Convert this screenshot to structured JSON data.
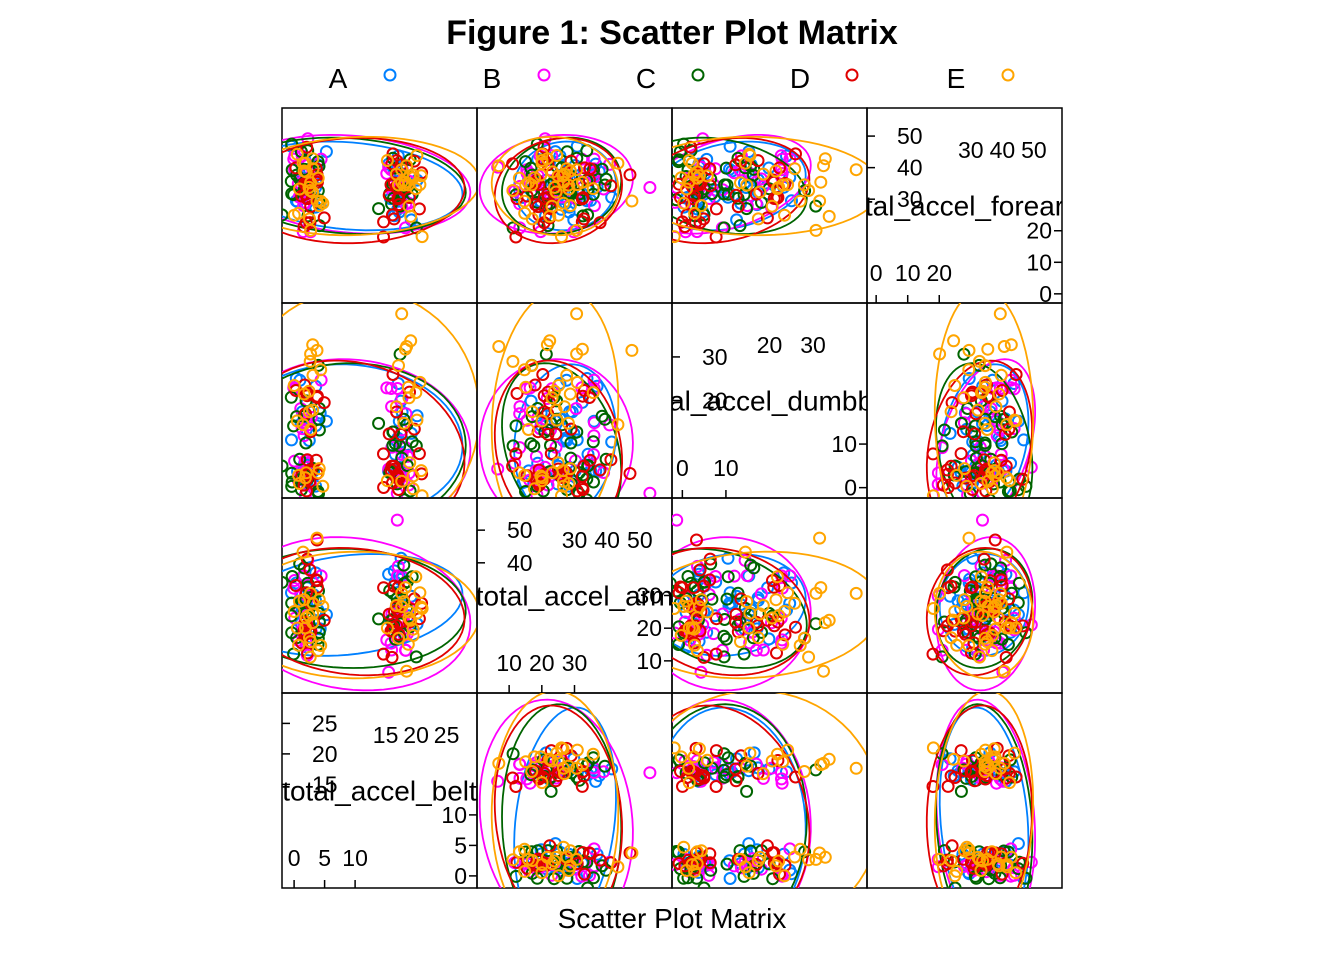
{
  "chart_data": {
    "type": "scatter",
    "title": "Figure 1: Scatter Plot Matrix",
    "xlabel": "Scatter Plot Matrix",
    "legend_position": "top",
    "grid": false,
    "ellipses": true,
    "groups": [
      {
        "name": "A",
        "color": "#0080FF"
      },
      {
        "name": "B",
        "color": "#FF00FF"
      },
      {
        "name": "C",
        "color": "#006400"
      },
      {
        "name": "D",
        "color": "#E00000"
      },
      {
        "name": "E",
        "color": "#FFA500"
      }
    ],
    "variables": [
      {
        "name": "total_accel_belt",
        "range": [
          -1,
          29
        ],
        "ticks_low": [
          0,
          5,
          10
        ],
        "ticks_high": [
          15,
          20,
          25
        ],
        "left_ticks": [
          0,
          5,
          10,
          15,
          20,
          25
        ]
      },
      {
        "name": "total_accel_arm",
        "range": [
          2,
          58
        ],
        "ticks_low": [
          10,
          20,
          30
        ],
        "ticks_high": [
          30,
          40,
          50
        ],
        "left_ticks": [
          10,
          20,
          30,
          40,
          50
        ]
      },
      {
        "name": "total_accel_dumbbell",
        "range": [
          -1,
          41
        ],
        "ticks_low": [
          0,
          10
        ],
        "ticks_high": [
          20,
          30
        ],
        "left_ticks": [
          0,
          10,
          20,
          30
        ]
      },
      {
        "name": "total_accel_forearm",
        "range": [
          -1,
          57
        ],
        "ticks_low": [
          0,
          10,
          20
        ],
        "ticks_high": [
          30,
          40,
          50
        ],
        "left_ticks": [
          0,
          10,
          20,
          30,
          40,
          50
        ]
      }
    ],
    "n_points_per_group": 40
  }
}
